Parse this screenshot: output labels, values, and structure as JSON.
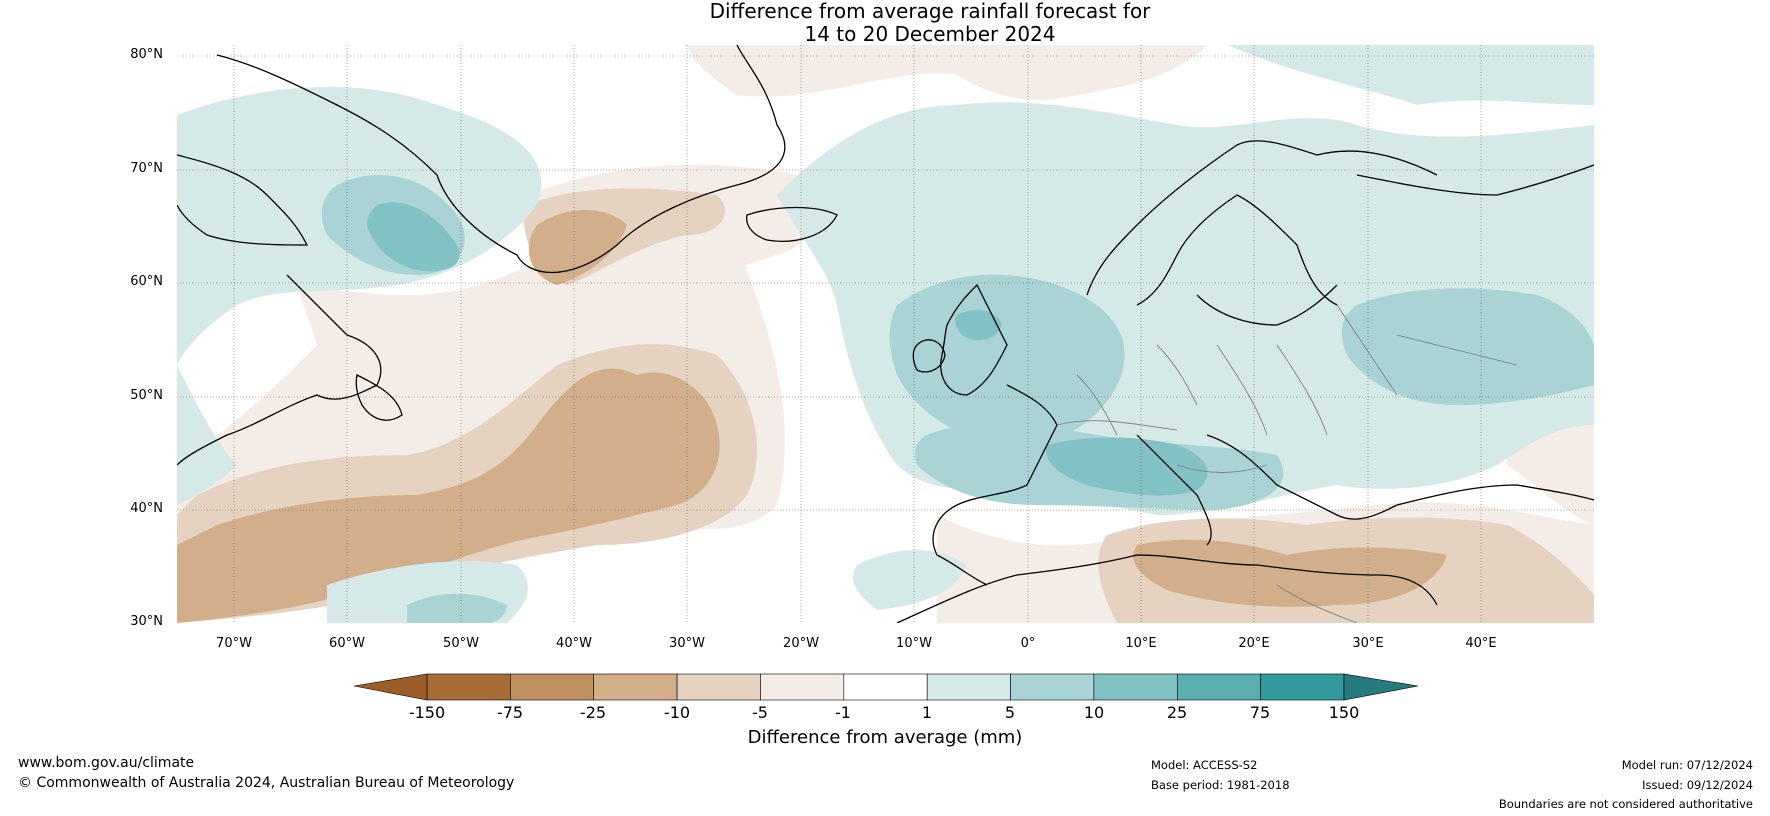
{
  "title": {
    "line1": "Difference from average rainfall forecast for",
    "line2": "14 to 20 December 2024"
  },
  "map": {
    "lat_labels": [
      "80°N",
      "70°N",
      "60°N",
      "50°N",
      "40°N",
      "30°N"
    ],
    "lon_labels": [
      "70°W",
      "60°W",
      "50°W",
      "40°W",
      "30°W",
      "20°W",
      "10°W",
      "0°",
      "10°E",
      "20°E",
      "30°E",
      "40°E"
    ],
    "lat_range": [
      30,
      80
    ],
    "lon_range": [
      -75,
      50
    ],
    "gridlines": true
  },
  "colorbar": {
    "ticks": [
      "-150",
      "-75",
      "-25",
      "-10",
      "-5",
      "-1",
      "1",
      "5",
      "10",
      "25",
      "75",
      "150"
    ],
    "colors": [
      "#a86c36",
      "#c0915f",
      "#d2ae8b",
      "#e6d2c0",
      "#f4ece6",
      "#ffffff",
      "#d6e9e9",
      "#a9d3d5",
      "#82c2c4",
      "#5aaeb0",
      "#329a9c"
    ],
    "under_color": "#9b5e2a",
    "over_color": "#247a7c",
    "label": "Difference from average (mm)"
  },
  "footer": {
    "website": "www.bom.gov.au/climate",
    "copyright": "© Commonwealth of Australia 2024, Australian Bureau of Meteorology",
    "model": "Model: ACCESS-S2",
    "base_period": "Base period: 1981-2018",
    "model_run": "Model run: 07/12/2024",
    "issued": "Issued: 09/12/2024",
    "disclaimer": "Boundaries are not considered authoritative"
  }
}
